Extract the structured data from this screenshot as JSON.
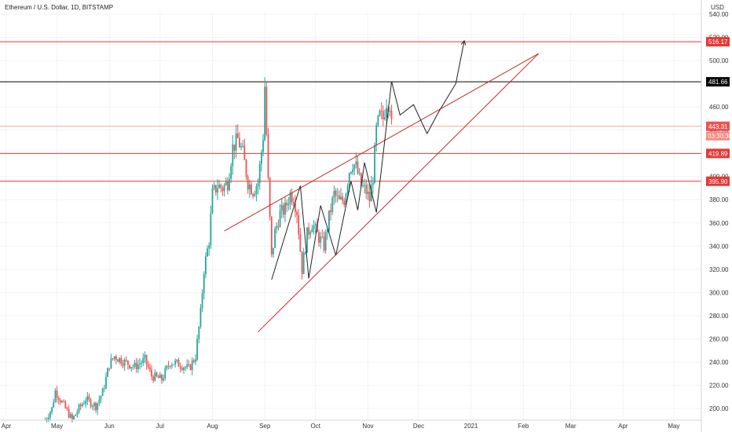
{
  "header": {
    "title": "Ethereum / U.S. Dollar, 1D, BITSTAMP",
    "currency": "USD"
  },
  "colors": {
    "up": "#26a69a",
    "down": "#ef5350",
    "hline": "#e53935",
    "resistance": "#000000",
    "wedge": "#c62828",
    "path": "#222222"
  },
  "chart_data": {
    "type": "candlestick",
    "title": "Ethereum / U.S. Dollar, 1D, BITSTAMP",
    "ylabel": "USD",
    "ylim": [
      193,
      545
    ],
    "xlim": [
      "2020-04-01",
      "2021-05-15"
    ],
    "y_ticks": [
      200,
      220,
      240,
      260,
      280,
      300,
      320,
      340,
      360,
      380,
      400,
      420,
      440,
      460,
      480,
      500,
      520,
      540
    ],
    "x_ticks": [
      {
        "date": "2020-04-01",
        "label": "Apr"
      },
      {
        "date": "2020-05-01",
        "label": "May"
      },
      {
        "date": "2020-06-01",
        "label": "Jun"
      },
      {
        "date": "2020-07-01",
        "label": "Jul"
      },
      {
        "date": "2020-08-01",
        "label": "Aug"
      },
      {
        "date": "2020-09-01",
        "label": "Sep"
      },
      {
        "date": "2020-10-01",
        "label": "Oct"
      },
      {
        "date": "2020-11-01",
        "label": "Nov"
      },
      {
        "date": "2020-12-01",
        "label": "Dec"
      },
      {
        "date": "2021-01-01",
        "label": "2021"
      },
      {
        "date": "2021-02-01",
        "label": "Feb"
      },
      {
        "date": "2021-03-01",
        "label": "Mar"
      },
      {
        "date": "2021-04-01",
        "label": "Apr"
      },
      {
        "date": "2021-05-01",
        "label": "May"
      }
    ],
    "closes_anchor": [
      [
        "2020-04-24",
        190
      ],
      [
        "2020-04-28",
        200
      ],
      [
        "2020-04-30",
        215
      ],
      [
        "2020-05-04",
        205
      ],
      [
        "2020-05-10",
        190
      ],
      [
        "2020-05-14",
        200
      ],
      [
        "2020-05-18",
        208
      ],
      [
        "2020-05-24",
        202
      ],
      [
        "2020-05-28",
        214
      ],
      [
        "2020-06-01",
        238
      ],
      [
        "2020-06-04",
        245
      ],
      [
        "2020-06-10",
        240
      ],
      [
        "2020-06-16",
        236
      ],
      [
        "2020-06-22",
        242
      ],
      [
        "2020-06-26",
        228
      ],
      [
        "2020-07-02",
        225
      ],
      [
        "2020-07-07",
        240
      ],
      [
        "2020-07-13",
        238
      ],
      [
        "2020-07-18",
        234
      ],
      [
        "2020-07-22",
        245
      ],
      [
        "2020-07-25",
        282
      ],
      [
        "2020-07-27",
        320
      ],
      [
        "2020-07-30",
        345
      ],
      [
        "2020-08-01",
        385
      ],
      [
        "2020-08-04",
        392
      ],
      [
        "2020-08-07",
        390
      ],
      [
        "2020-08-10",
        395
      ],
      [
        "2020-08-13",
        425
      ],
      [
        "2020-08-16",
        432
      ],
      [
        "2020-08-19",
        420
      ],
      [
        "2020-08-22",
        395
      ],
      [
        "2020-08-25",
        388
      ],
      [
        "2020-08-28",
        395
      ],
      [
        "2020-08-31",
        435
      ],
      [
        "2020-09-01",
        478
      ],
      [
        "2020-09-03",
        395
      ],
      [
        "2020-09-05",
        330
      ],
      [
        "2020-09-07",
        352
      ],
      [
        "2020-09-10",
        368
      ],
      [
        "2020-09-13",
        372
      ],
      [
        "2020-09-16",
        385
      ],
      [
        "2020-09-18",
        382
      ],
      [
        "2020-09-20",
        370
      ],
      [
        "2020-09-23",
        320
      ],
      [
        "2020-09-26",
        350
      ],
      [
        "2020-09-29",
        360
      ],
      [
        "2020-10-02",
        350
      ],
      [
        "2020-10-06",
        340
      ],
      [
        "2020-10-09",
        365
      ],
      [
        "2020-10-12",
        385
      ],
      [
        "2020-10-15",
        378
      ],
      [
        "2020-10-18",
        380
      ],
      [
        "2020-10-21",
        405
      ],
      [
        "2020-10-23",
        412
      ],
      [
        "2020-10-25",
        408
      ],
      [
        "2020-10-28",
        392
      ],
      [
        "2020-10-31",
        387
      ],
      [
        "2020-11-02",
        380
      ],
      [
        "2020-11-04",
        400
      ],
      [
        "2020-11-06",
        440
      ],
      [
        "2020-11-08",
        452
      ],
      [
        "2020-11-10",
        450
      ],
      [
        "2020-11-12",
        465
      ],
      [
        "2020-11-14",
        463
      ],
      [
        "2020-11-15",
        443
      ]
    ],
    "horizontal_levels": [
      {
        "value": 516.17,
        "label": "516.17",
        "color": "#e53935"
      },
      {
        "value": 481.66,
        "label": "481.66",
        "color": "#000000"
      },
      {
        "value": 443.31,
        "label": "443.31",
        "color": "#f5a5a5",
        "sublabel": "03:30:30"
      },
      {
        "value": 419.89,
        "label": "419.89",
        "color": "#e53935"
      },
      {
        "value": 395.9,
        "label": "395.90",
        "color": "#e53935"
      }
    ],
    "wedge_lines": [
      {
        "from": [
          "2020-08-08",
          353
        ],
        "to": [
          "2021-02-10",
          506
        ]
      },
      {
        "from": [
          "2020-08-28",
          266
        ],
        "to": [
          "2021-02-10",
          506
        ]
      }
    ],
    "projection_path": [
      [
        "2020-09-05",
        311
      ],
      [
        "2020-09-22",
        392
      ],
      [
        "2020-09-27",
        312
      ],
      [
        "2020-10-04",
        375
      ],
      [
        "2020-10-13",
        332
      ],
      [
        "2020-10-22",
        396
      ],
      [
        "2020-10-26",
        371
      ],
      [
        "2020-10-30",
        412
      ],
      [
        "2020-11-06",
        369
      ],
      [
        "2020-11-15",
        482
      ],
      [
        "2020-11-20",
        453
      ],
      [
        "2020-11-28",
        462
      ],
      [
        "2020-12-06",
        437
      ],
      [
        "2020-12-13",
        456
      ],
      [
        "2020-12-23",
        480
      ],
      [
        "2020-12-28",
        517
      ]
    ]
  }
}
